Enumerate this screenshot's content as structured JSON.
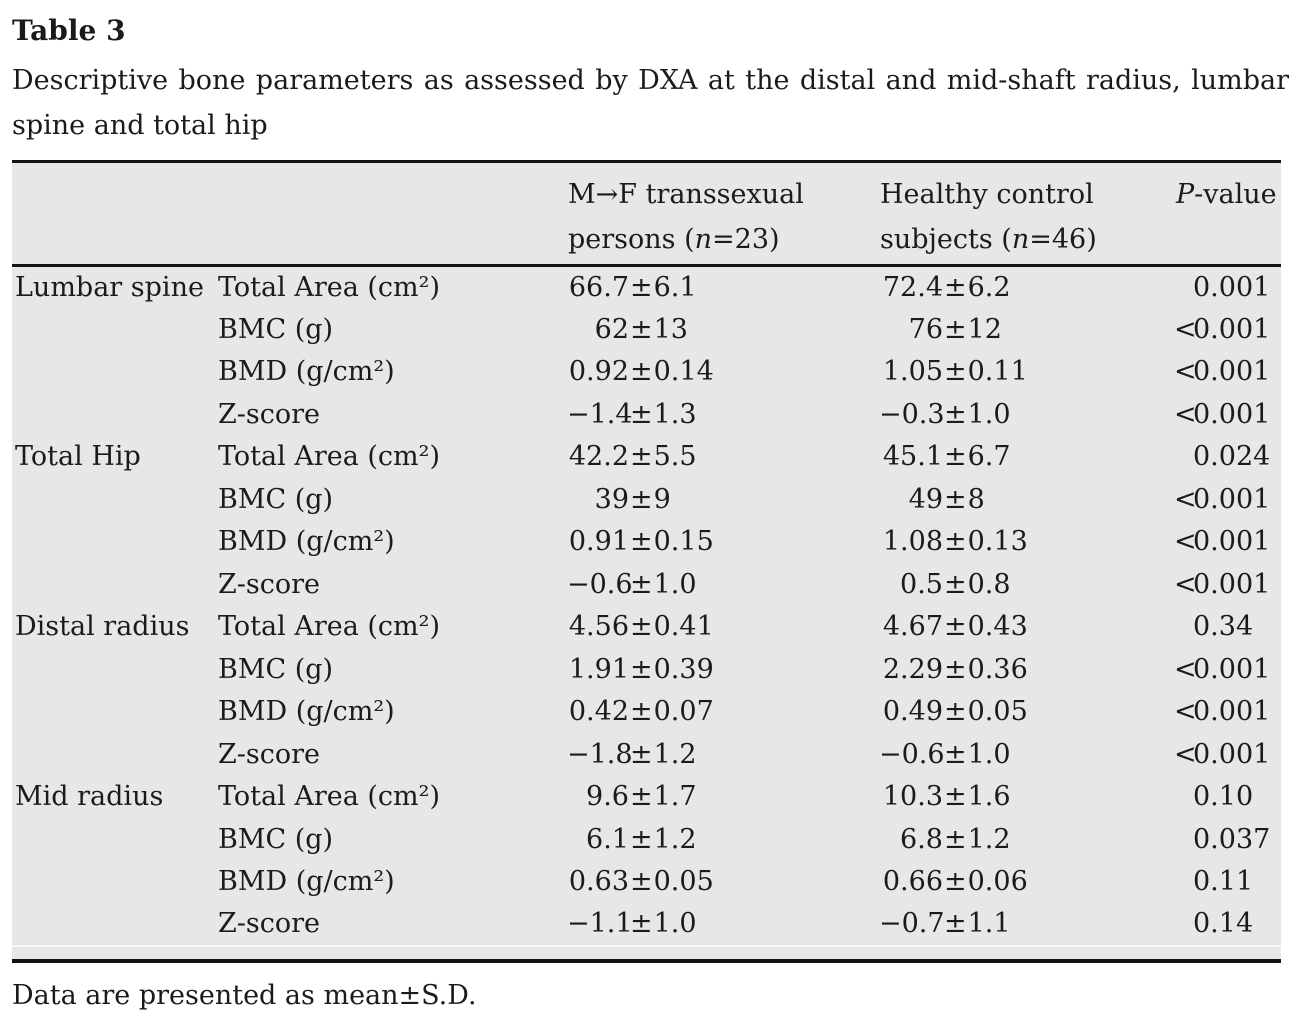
{
  "page": {
    "title": "Table 3",
    "caption": "Descriptive bone parameters as assessed by DXA at the distal and mid-shaft radius, lumbar spine and total hip",
    "footnote": "Data are presented as mean±S.D."
  },
  "colors": {
    "table_background": "#e6e7e7",
    "rule": "#131313",
    "text": "#1b1b1b"
  },
  "table": {
    "header": {
      "mf_line1": "M→F transsexual",
      "mf_line2_pre": "persons (",
      "mf_n": "n",
      "mf_line2_post": "=23)",
      "hc_line1": "Healthy control",
      "hc_line2_pre": "subjects (",
      "hc_n": "n",
      "hc_line2_post": "=46)",
      "p_italic": "P",
      "p_rest": "-value"
    },
    "groups": [
      {
        "site": "Lumbar spine",
        "rows": [
          {
            "param": "Total Area (cm²)",
            "mf": "66.7±6.1",
            "hc": "72.4±6.2",
            "p": "0.001"
          },
          {
            "param": "BMC (g)",
            "mf": "62±13",
            "hc": "76±12",
            "p": "<0.001"
          },
          {
            "param": "BMD (g/cm²)",
            "mf": "0.92±0.14",
            "hc": "1.05±0.11",
            "p": "<0.001"
          },
          {
            "param": "Z-score",
            "mf": "−1.4±1.3",
            "hc": "−0.3±1.0",
            "p": "<0.001"
          }
        ]
      },
      {
        "site": "Total Hip",
        "rows": [
          {
            "param": "Total Area (cm²)",
            "mf": "42.2±5.5",
            "hc": "45.1±6.7",
            "p": "0.024"
          },
          {
            "param": "BMC (g)",
            "mf": "39±9",
            "hc": "49±8",
            "p": "<0.001"
          },
          {
            "param": "BMD (g/cm²)",
            "mf": "0.91±0.15",
            "hc": "1.08±0.13",
            "p": "<0.001"
          },
          {
            "param": "Z-score",
            "mf": "−0.6±1.0",
            "hc": "0.5±0.8",
            "p": "<0.001"
          }
        ]
      },
      {
        "site": "Distal radius",
        "rows": [
          {
            "param": "Total Area (cm²)",
            "mf": "4.56±0.41",
            "hc": "4.67±0.43",
            "p": "0.34"
          },
          {
            "param": "BMC (g)",
            "mf": "1.91±0.39",
            "hc": "2.29±0.36",
            "p": "<0.001"
          },
          {
            "param": "BMD (g/cm²)",
            "mf": "0.42±0.07",
            "hc": "0.49±0.05",
            "p": "<0.001"
          },
          {
            "param": "Z-score",
            "mf": "−1.8±1.2",
            "hc": "−0.6±1.0",
            "p": "<0.001"
          }
        ]
      },
      {
        "site": "Mid radius",
        "rows": [
          {
            "param": "Total Area (cm²)",
            "mf": "9.6±1.7",
            "hc": "10.3±1.6",
            "p": "0.10"
          },
          {
            "param": "BMC (g)",
            "mf": "6.1±1.2",
            "hc": "6.8±1.2",
            "p": "0.037"
          },
          {
            "param": "BMD (g/cm²)",
            "mf": "0.63±0.05",
            "hc": "0.66±0.06",
            "p": "0.11"
          },
          {
            "param": "Z-score",
            "mf": "−1.1±1.0",
            "hc": "−0.7±1.1",
            "p": "0.14"
          }
        ]
      }
    ]
  }
}
